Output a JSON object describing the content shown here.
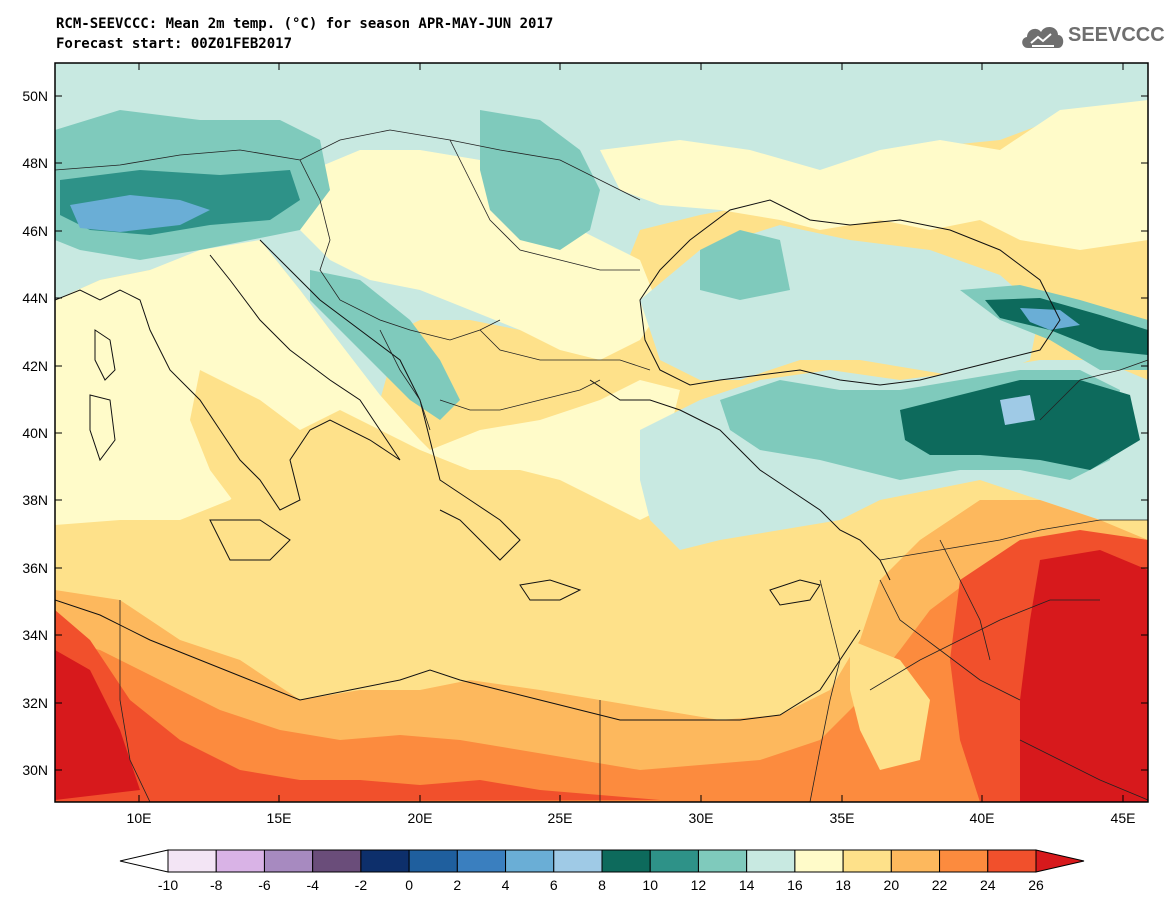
{
  "header": {
    "title_line1": "RCM-SEEVCCC: Mean 2m temp. (°C) for season APR-MAY-JUN 2017",
    "title_line2": "Forecast start: 00Z01FEB2017"
  },
  "logo": {
    "text": "SEEVCCC",
    "icon": "cloud-icon"
  },
  "map": {
    "lat_labels": [
      "50N",
      "48N",
      "46N",
      "44N",
      "42N",
      "40N",
      "38N",
      "36N",
      "34N",
      "32N",
      "30N"
    ],
    "lon_labels": [
      "10E",
      "15E",
      "20E",
      "25E",
      "30E",
      "35E",
      "40E",
      "45E"
    ]
  },
  "colorbar": {
    "labels": [
      "-10",
      "-8",
      "-6",
      "-4",
      "-2",
      "0",
      "2",
      "4",
      "6",
      "8",
      "10",
      "12",
      "14",
      "16",
      "18",
      "20",
      "22",
      "24",
      "26"
    ],
    "colors": [
      "#f3e5f5",
      "#d9b3e6",
      "#a78ac0",
      "#6a4d7a",
      "#0d2f6b",
      "#1f5f9e",
      "#3a7fbf",
      "#6aaed6",
      "#9fcae6",
      "#0d6a5c",
      "#2e9288",
      "#7fcabc",
      "#c8e9e1",
      "#fffbc9",
      "#fee18a",
      "#fdb85d",
      "#fc8b3e",
      "#f1502c"
    ],
    "under_color": "#ffffff",
    "over_color": "#d7191c"
  }
}
